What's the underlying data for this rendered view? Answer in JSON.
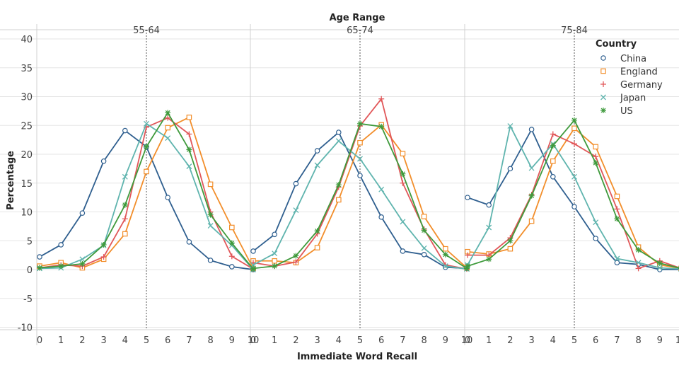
{
  "chart_data": {
    "type": "line",
    "title": "Age Range",
    "xlabel": "Immediate Word Recall",
    "ylabel": "Percentage",
    "ylim": [
      -10,
      40
    ],
    "yticks": [
      40,
      35,
      30,
      25,
      20,
      15,
      10,
      5,
      0,
      -5,
      -10
    ],
    "xticks": [
      0,
      1,
      2,
      3,
      4,
      5,
      6,
      7,
      8,
      9,
      10
    ],
    "x": [
      0,
      1,
      2,
      3,
      4,
      5,
      6,
      7,
      8,
      9,
      10
    ],
    "reference_x": 5,
    "grid": "horizontal",
    "legend": {
      "title": "Country",
      "position": "top-right",
      "entries": [
        "China",
        "England",
        "Germany",
        "Japan",
        "US"
      ]
    },
    "colors": {
      "China": "#2f5f8f",
      "England": "#f28e2b",
      "Germany": "#e15759",
      "Japan": "#5fb4ae",
      "US": "#3f9a3c"
    },
    "markers": {
      "China": "circle",
      "England": "square",
      "Germany": "plus",
      "Japan": "x",
      "US": "asterisk"
    },
    "panels": [
      {
        "label": "55-64",
        "series": [
          {
            "name": "China",
            "values": [
              2.2,
              4.3,
              9.8,
              18.8,
              24.1,
              21.3,
              12.5,
              4.8,
              1.6,
              0.5,
              0.0
            ]
          },
          {
            "name": "England",
            "values": [
              0.6,
              1.2,
              0.3,
              1.8,
              6.2,
              17.0,
              24.6,
              26.4,
              14.8,
              7.3,
              0.2
            ]
          },
          {
            "name": "Germany",
            "values": [
              0.3,
              0.8,
              0.6,
              2.2,
              8.8,
              24.7,
              26.3,
              23.5,
              10.0,
              2.3,
              0.1
            ]
          },
          {
            "name": "Japan",
            "values": [
              0.2,
              0.3,
              1.8,
              4.2,
              16.1,
              25.3,
              22.8,
              17.9,
              7.6,
              4.2,
              0.0
            ]
          },
          {
            "name": "US",
            "values": [
              0.3,
              0.6,
              1.0,
              4.3,
              11.2,
              21.3,
              27.2,
              20.8,
              9.5,
              4.6,
              0.1
            ]
          }
        ]
      },
      {
        "label": "65-74",
        "series": [
          {
            "name": "China",
            "values": [
              3.2,
              6.1,
              14.9,
              20.6,
              23.8,
              16.3,
              9.1,
              3.2,
              2.6,
              0.4,
              0.2
            ]
          },
          {
            "name": "England",
            "values": [
              1.5,
              1.5,
              1.2,
              3.8,
              12.1,
              22.0,
              25.1,
              20.1,
              9.2,
              3.6,
              0.3
            ]
          },
          {
            "name": "Germany",
            "values": [
              1.2,
              0.6,
              1.3,
              6.2,
              14.3,
              24.9,
              29.6,
              15.0,
              7.0,
              0.8,
              0.1
            ]
          },
          {
            "name": "Japan",
            "values": [
              0.8,
              2.8,
              10.3,
              18.1,
              22.3,
              19.2,
              13.9,
              8.3,
              3.7,
              0.6,
              0.1
            ]
          },
          {
            "name": "US",
            "values": [
              0.2,
              0.6,
              2.4,
              6.7,
              14.7,
              25.3,
              24.8,
              16.6,
              6.8,
              2.6,
              0.2
            ]
          }
        ]
      },
      {
        "label": "75-84",
        "series": [
          {
            "name": "China",
            "values": [
              12.5,
              11.2,
              17.5,
              24.3,
              16.1,
              10.9,
              5.4,
              1.2,
              0.9,
              0.0,
              0.0
            ]
          },
          {
            "name": "England",
            "values": [
              3.1,
              2.7,
              3.6,
              8.4,
              18.8,
              24.5,
              21.3,
              12.7,
              3.9,
              0.8,
              0.2
            ]
          },
          {
            "name": "Germany",
            "values": [
              2.5,
              2.5,
              5.5,
              13.0,
              23.5,
              21.8,
              19.6,
              10.5,
              0.2,
              1.5,
              0.2
            ]
          },
          {
            "name": "Japan",
            "values": [
              0.8,
              7.3,
              24.9,
              17.6,
              21.8,
              16.1,
              8.2,
              1.9,
              1.2,
              0.3,
              0.1
            ]
          },
          {
            "name": "US",
            "values": [
              0.6,
              1.8,
              5.0,
              12.8,
              21.5,
              25.9,
              18.5,
              8.8,
              3.4,
              1.1,
              0.2
            ]
          }
        ]
      }
    ]
  }
}
